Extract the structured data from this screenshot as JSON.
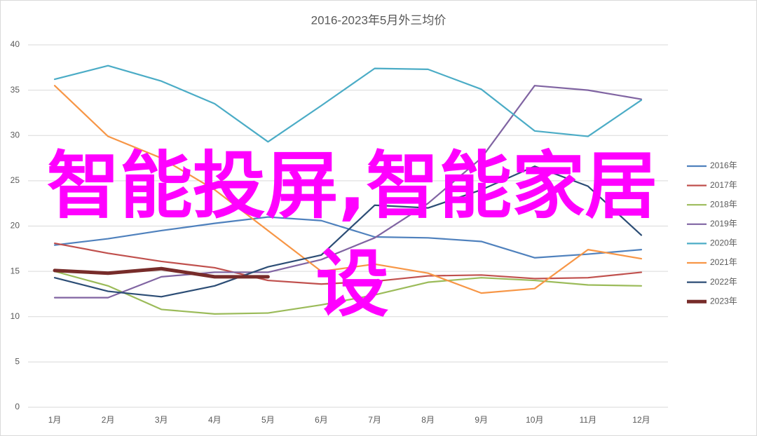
{
  "chart_data": {
    "type": "line",
    "title": "2016-2023年5月外三均价",
    "categories": [
      "1月",
      "2月",
      "3月",
      "4月",
      "5月",
      "6月",
      "7月",
      "8月",
      "9月",
      "10月",
      "11月",
      "12月"
    ],
    "ylim": [
      0,
      40
    ],
    "yticks": [
      0,
      5,
      10,
      15,
      20,
      25,
      30,
      35,
      40
    ],
    "grid": true,
    "legend": "right",
    "series": [
      {
        "name": "2016年",
        "color": "#4f81bd",
        "values": [
          17.9,
          18.6,
          19.5,
          20.3,
          21.0,
          20.6,
          18.8,
          18.7,
          18.3,
          16.5,
          16.9,
          17.4
        ]
      },
      {
        "name": "2017年",
        "color": "#c0504d",
        "values": [
          18.1,
          17.0,
          16.1,
          15.4,
          14.0,
          13.6,
          13.9,
          14.5,
          14.6,
          14.2,
          14.3,
          14.9
        ]
      },
      {
        "name": "2018年",
        "color": "#9bbb59",
        "values": [
          15.0,
          13.4,
          10.8,
          10.3,
          10.4,
          11.3,
          12.4,
          13.8,
          14.3,
          14.0,
          13.5,
          13.4
        ]
      },
      {
        "name": "2019年",
        "color": "#8064a2",
        "values": [
          12.1,
          12.1,
          14.4,
          14.9,
          14.9,
          16.3,
          18.7,
          22.5,
          27.5,
          35.5,
          35.0,
          34.0
        ]
      },
      {
        "name": "2020年",
        "color": "#4bacc6",
        "values": [
          36.2,
          37.7,
          36.0,
          33.5,
          29.3,
          33.3,
          37.4,
          37.3,
          35.1,
          30.5,
          29.9,
          33.9
        ]
      },
      {
        "name": "2021年",
        "color": "#f79646",
        "values": [
          35.5,
          29.9,
          27.5,
          24.0,
          19.5,
          15.0,
          15.8,
          14.8,
          12.6,
          13.1,
          17.4,
          16.4
        ]
      },
      {
        "name": "2022年",
        "color": "#2c4d75",
        "values": [
          14.3,
          12.8,
          12.2,
          13.4,
          15.5,
          16.8,
          22.3,
          22.0,
          24.0,
          26.6,
          24.4,
          19.0
        ]
      },
      {
        "name": "2023年",
        "color": "#772c2a",
        "values": [
          15.1,
          14.8,
          15.3,
          14.4,
          14.4,
          null,
          null,
          null,
          null,
          null,
          null,
          null
        ]
      }
    ]
  },
  "overlay_text": "智能投屏,智能家居设"
}
